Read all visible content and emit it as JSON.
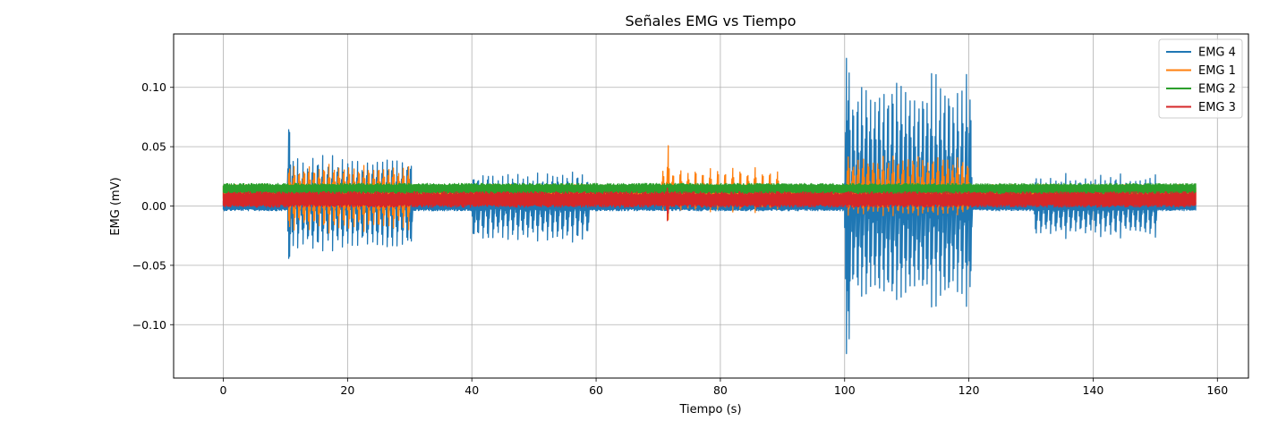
{
  "chart_data": {
    "type": "line",
    "title": "Señales EMG vs Tiempo",
    "xlabel": "Tiempo (s)",
    "ylabel": "EMG (mV)",
    "xlim": [
      -8,
      165
    ],
    "ylim": [
      -0.145,
      0.145
    ],
    "x_ticks": [
      0,
      20,
      40,
      60,
      80,
      100,
      120,
      140,
      160
    ],
    "x_tick_labels": [
      "0",
      "20",
      "40",
      "60",
      "80",
      "100",
      "120",
      "140",
      "160"
    ],
    "y_ticks": [
      -0.1,
      -0.05,
      0.0,
      0.05,
      0.1
    ],
    "y_tick_labels": [
      "−0.10",
      "−0.05",
      "0.00",
      "0.05",
      "0.10"
    ],
    "grid": true,
    "legend_position": "top-right",
    "series": [
      {
        "name": "EMG 4",
        "color": "#1f77b4",
        "baseline": {
          "center": 0.0005,
          "half_range": 0.0045
        },
        "bursts": [
          {
            "times": [
              10.6
            ],
            "max": 0.087,
            "min": -0.06
          },
          {
            "times": [
              11.2,
              12.0,
              12.8,
              13.6,
              14.4,
              15.2,
              16.0,
              16.8,
              17.6,
              18.4,
              19.2,
              20.0,
              20.8,
              21.6,
              22.4,
              23.2,
              24.0,
              24.8,
              25.6,
              26.4,
              27.2,
              28.0,
              28.8,
              29.6,
              30.2
            ],
            "max": 0.045,
            "min": -0.04
          },
          {
            "times": [
              40.3,
              41.0,
              41.8,
              42.6,
              43.4,
              44.2,
              45.0,
              45.8,
              46.6,
              47.4,
              48.2,
              49.0,
              49.8,
              50.6,
              51.4,
              52.2,
              53.0,
              53.8,
              54.6,
              55.4,
              56.2,
              57.0,
              57.8,
              58.6
            ],
            "max": 0.03,
            "min": -0.032
          },
          {
            "times": [
              100.3,
              100.7
            ],
            "max": 0.132,
            "min": -0.132
          },
          {
            "times": [
              101.4,
              102.1,
              102.8,
              103.5,
              104.2,
              104.9,
              105.6,
              106.3,
              107.0,
              107.7,
              108.4,
              109.1,
              109.8,
              110.5,
              111.2,
              111.9,
              112.6,
              113.3,
              114.0,
              114.7,
              115.4,
              116.1,
              116.8,
              117.5,
              118.2,
              118.9,
              119.6,
              120.2
            ],
            "max": 0.118,
            "min": -0.09
          },
          {
            "times": [
              130.8,
              131.6,
              132.4,
              133.2,
              134.0,
              134.8,
              135.6,
              136.4,
              137.2,
              138.0,
              138.8,
              139.6,
              140.4,
              141.2,
              142.0,
              142.8,
              143.6,
              144.4,
              145.2,
              146.0,
              146.8,
              147.6,
              148.4,
              149.2,
              150.0
            ],
            "max": 0.028,
            "min": -0.028
          }
        ]
      },
      {
        "name": "EMG 1",
        "color": "#ff7f0e",
        "baseline": {
          "center": 0.011,
          "half_range": 0.007
        },
        "bursts": [
          {
            "times": [
              10.6,
              11.4,
              12.2,
              13.0,
              13.8,
              14.6,
              15.4,
              16.2,
              17.0,
              17.8,
              18.6,
              19.4,
              20.2,
              21.0,
              21.8,
              22.6,
              23.4,
              24.2,
              25.0,
              25.8,
              26.6,
              27.4,
              28.2,
              29.0,
              29.8
            ],
            "max": 0.036,
            "min": -0.024
          },
          {
            "times": [
              71.6
            ],
            "max": 0.055,
            "min": -0.014
          },
          {
            "times": [
              70.8,
              72.4,
              73.6,
              74.8,
              76.0,
              77.2,
              78.4,
              79.6,
              80.8,
              82.0,
              83.2,
              84.4,
              85.6,
              86.8,
              88.0,
              89.2
            ],
            "max": 0.033,
            "min": -0.006
          },
          {
            "times": [
              100.6,
              101.4,
              102.2,
              103.0,
              103.8,
              104.6,
              105.4,
              106.2,
              107.0,
              107.8,
              108.6,
              109.4,
              110.2,
              111.0,
              111.8,
              112.6,
              113.4,
              114.2,
              115.0,
              115.8,
              116.6,
              117.4,
              118.2,
              119.0,
              119.8
            ],
            "max": 0.045,
            "min": -0.01
          }
        ]
      },
      {
        "name": "EMG 2",
        "color": "#2ca02c",
        "baseline": {
          "center": 0.0145,
          "half_range": 0.0045
        },
        "bursts": []
      },
      {
        "name": "EMG 3",
        "color": "#d62728",
        "baseline": {
          "center": 0.0055,
          "half_range": 0.0065
        },
        "bursts": [
          {
            "times": [
              71.5
            ],
            "max": 0.016,
            "min": -0.014
          }
        ]
      }
    ],
    "x_range": [
      0,
      156.5
    ]
  }
}
